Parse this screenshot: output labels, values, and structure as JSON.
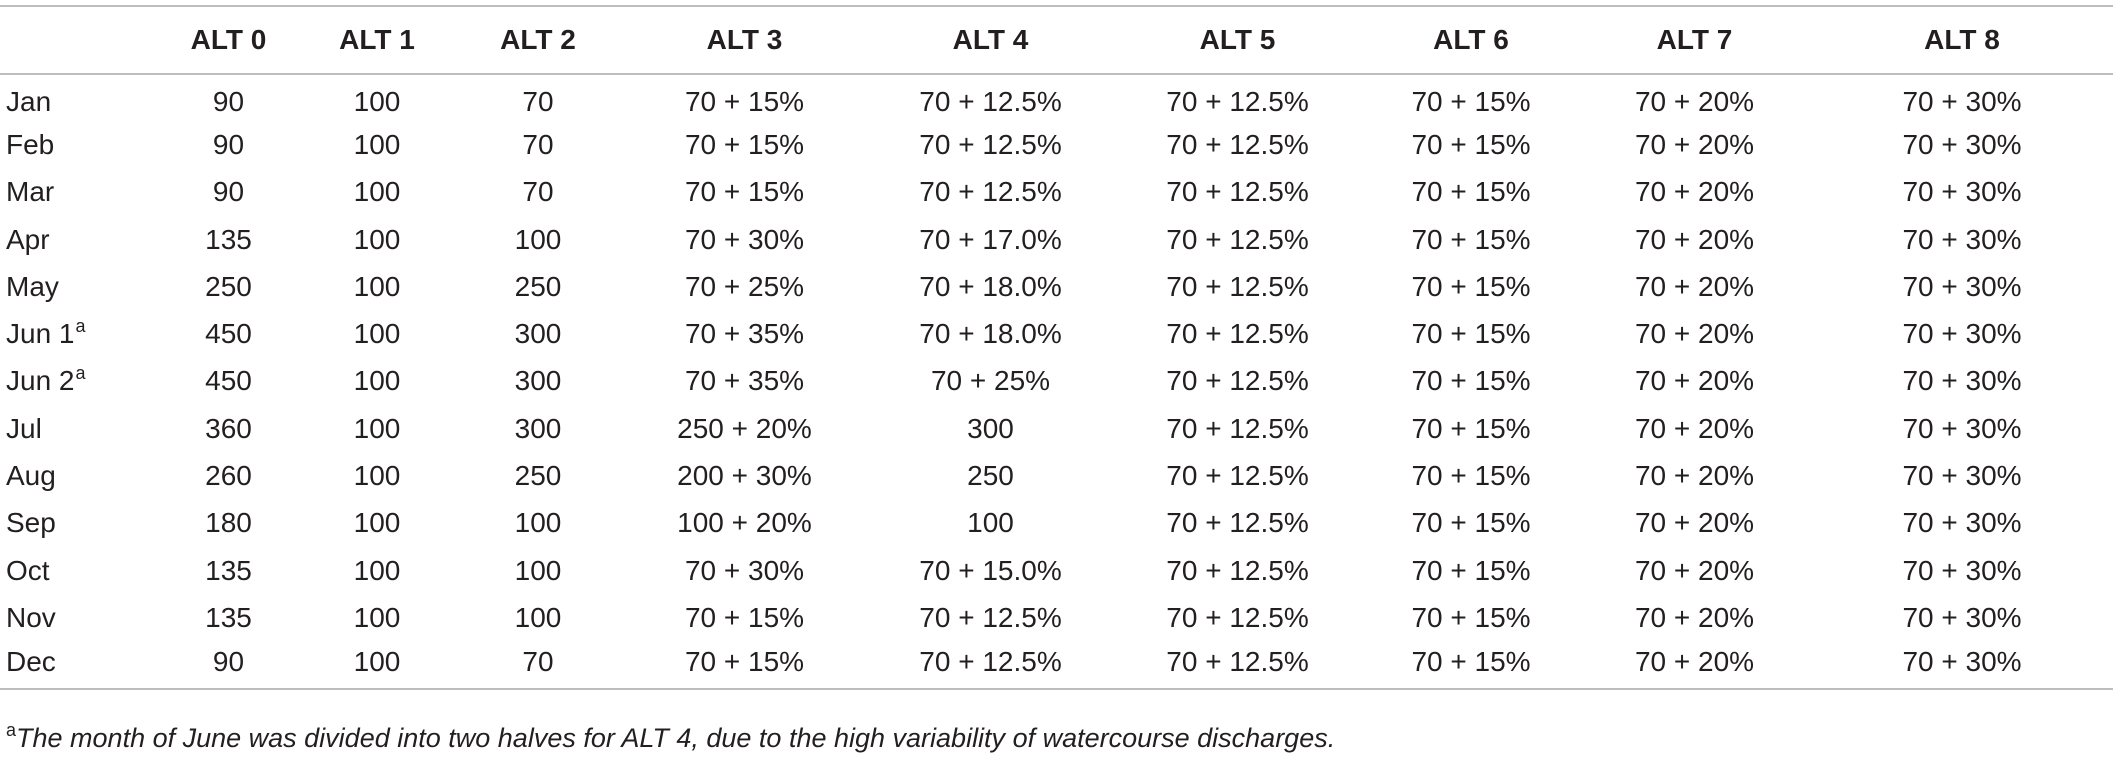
{
  "table": {
    "headers": [
      "",
      "ALT 0",
      "ALT 1",
      "ALT 2",
      "ALT 3",
      "ALT 4",
      "ALT 5",
      "ALT 6",
      "ALT 7",
      "ALT 8"
    ],
    "rows": [
      {
        "month": "Jan",
        "sup": "",
        "values": [
          "90",
          "100",
          "70",
          "70 + 15%",
          "70 + 12.5%",
          "70 + 12.5%",
          "70 + 15%",
          "70 + 20%",
          "70 + 30%"
        ]
      },
      {
        "month": "Feb",
        "sup": "",
        "values": [
          "90",
          "100",
          "70",
          "70 + 15%",
          "70 + 12.5%",
          "70 + 12.5%",
          "70 + 15%",
          "70 + 20%",
          "70 + 30%"
        ]
      },
      {
        "month": "Mar",
        "sup": "",
        "values": [
          "90",
          "100",
          "70",
          "70 + 15%",
          "70 + 12.5%",
          "70 + 12.5%",
          "70 + 15%",
          "70 + 20%",
          "70 + 30%"
        ]
      },
      {
        "month": "Apr",
        "sup": "",
        "values": [
          "135",
          "100",
          "100",
          "70 + 30%",
          "70 + 17.0%",
          "70 + 12.5%",
          "70 + 15%",
          "70 + 20%",
          "70 + 30%"
        ]
      },
      {
        "month": "May",
        "sup": "",
        "values": [
          "250",
          "100",
          "250",
          "70 + 25%",
          "70 + 18.0%",
          "70 + 12.5%",
          "70 + 15%",
          "70 + 20%",
          "70 + 30%"
        ]
      },
      {
        "month": "Jun 1",
        "sup": "a",
        "values": [
          "450",
          "100",
          "300",
          "70 + 35%",
          "70 + 18.0%",
          "70 + 12.5%",
          "70 + 15%",
          "70 + 20%",
          "70 + 30%"
        ]
      },
      {
        "month": "Jun 2",
        "sup": "a",
        "values": [
          "450",
          "100",
          "300",
          "70 + 35%",
          "70 + 25%",
          "70 + 12.5%",
          "70 + 15%",
          "70 + 20%",
          "70 + 30%"
        ]
      },
      {
        "month": "Jul",
        "sup": "",
        "values": [
          "360",
          "100",
          "300",
          "250 + 20%",
          "300",
          "70 + 12.5%",
          "70 + 15%",
          "70 + 20%",
          "70 + 30%"
        ]
      },
      {
        "month": "Aug",
        "sup": "",
        "values": [
          "260",
          "100",
          "250",
          "200 + 30%",
          "250",
          "70 + 12.5%",
          "70 + 15%",
          "70 + 20%",
          "70 + 30%"
        ]
      },
      {
        "month": "Sep",
        "sup": "",
        "values": [
          "180",
          "100",
          "100",
          "100 + 20%",
          "100",
          "70 + 12.5%",
          "70 + 15%",
          "70 + 20%",
          "70 + 30%"
        ]
      },
      {
        "month": "Oct",
        "sup": "",
        "values": [
          "135",
          "100",
          "100",
          "70 + 30%",
          "70 + 15.0%",
          "70 + 12.5%",
          "70 + 15%",
          "70 + 20%",
          "70 + 30%"
        ]
      },
      {
        "month": "Nov",
        "sup": "",
        "values": [
          "135",
          "100",
          "100",
          "70 + 15%",
          "70 + 12.5%",
          "70 + 12.5%",
          "70 + 15%",
          "70 + 20%",
          "70 + 30%"
        ]
      },
      {
        "month": "Dec",
        "sup": "",
        "values": [
          "90",
          "100",
          "70",
          "70 + 15%",
          "70 + 12.5%",
          "70 + 12.5%",
          "70 + 15%",
          "70 + 20%",
          "70 + 30%"
        ]
      }
    ]
  },
  "footnote": {
    "marker": "a",
    "text": "The month of June was divided into two halves for ALT 4, due to the high variability of watercourse discharges."
  }
}
